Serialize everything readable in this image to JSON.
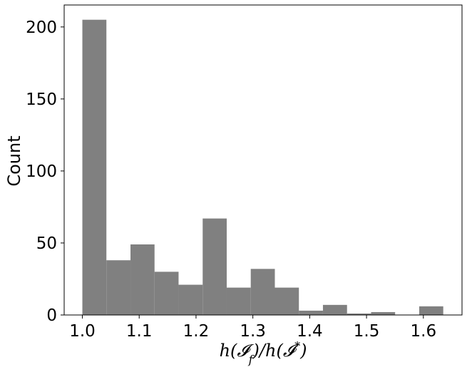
{
  "chart_data": {
    "type": "bar",
    "bin_edges": [
      1.0,
      1.0423,
      1.0847,
      1.127,
      1.1693,
      1.2117,
      1.254,
      1.2963,
      1.3387,
      1.381,
      1.4233,
      1.4657,
      1.508,
      1.5503,
      1.5927,
      1.635
    ],
    "values": [
      205,
      38,
      49,
      30,
      21,
      67,
      19,
      32,
      19,
      3,
      7,
      1,
      2,
      0,
      6
    ],
    "xlabel": "h(𝓘_f)/h(𝓘*)",
    "ylabel": "Count",
    "xlim": [
      0.968,
      1.668
    ],
    "ylim": [
      0,
      215.25
    ],
    "xticks": [
      1.0,
      1.1,
      1.2,
      1.3,
      1.4,
      1.5,
      1.6
    ],
    "xtick_labels": [
      "1.0",
      "1.1",
      "1.2",
      "1.3",
      "1.4",
      "1.5",
      "1.6"
    ],
    "yticks": [
      0,
      50,
      100,
      150,
      200
    ],
    "ytick_labels": [
      "0",
      "50",
      "100",
      "150",
      "200"
    ],
    "bar_color": "#808080",
    "grid": false,
    "legend": "none"
  },
  "labels": {
    "ylabel": "Count"
  }
}
